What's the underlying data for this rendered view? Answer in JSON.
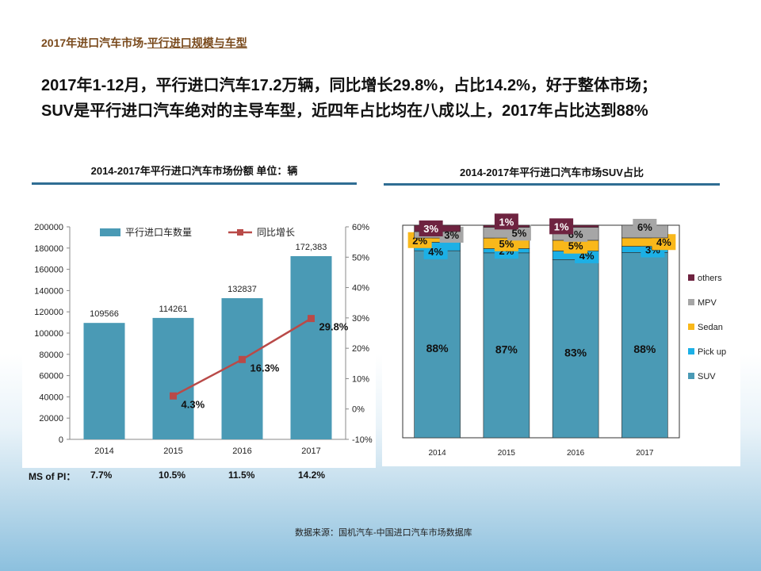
{
  "slide": {
    "title_prefix": "2017年进口汽车市场-",
    "title_main": "平行进口规模与车型",
    "headline_line1": "2017年1-12月，平行进口汽车17.2万辆，同比增长29.8%，占比14.2%，好于整体市场；",
    "headline_line2": "SUV是平行进口汽车绝对的主导车型，近四年占比均在八成以上，2017年占比达到88%",
    "source": "数据来源：国机汽车-中国进口汽车市场数据库"
  },
  "ms_row": {
    "label": "MS of PI：",
    "values": [
      "7.7%",
      "10.5%",
      "11.5%",
      "14.2%"
    ]
  },
  "colors": {
    "bar": "#4a9ab5",
    "line": "#b94a48",
    "rule": "#2f6d93",
    "suv": "#4a9ab5",
    "pickup": "#1cb0e6",
    "sedan": "#f9b81a",
    "mpv": "#a6a6a6",
    "others": "#6e2340"
  },
  "chart_data": [
    {
      "type": "bar",
      "title": "2014-2017年平行进口汽车市场份额 单位：辆",
      "categories": [
        "2014",
        "2015",
        "2016",
        "2017"
      ],
      "series": [
        {
          "name": "平行进口车数量",
          "axis": "left",
          "kind": "bar",
          "values": [
            109566,
            114261,
            132837,
            172383
          ],
          "labels": [
            "109566",
            "114261",
            "132837",
            "172,383"
          ]
        },
        {
          "name": "同比增长",
          "axis": "right",
          "kind": "line",
          "x": [
            "2015",
            "2016",
            "2017"
          ],
          "values": [
            4.3,
            16.3,
            29.8
          ],
          "labels": [
            "4.3%",
            "16.3%",
            "29.8%"
          ]
        }
      ],
      "ylim": [
        0,
        200000
      ],
      "yticks": [
        "0",
        "20000",
        "40000",
        "60000",
        "80000",
        "100000",
        "120000",
        "140000",
        "160000",
        "180000",
        "200000"
      ],
      "y2lim": [
        -10,
        60
      ],
      "y2ticks": [
        "-10%",
        "0%",
        "10%",
        "20%",
        "30%",
        "40%",
        "50%",
        "60%"
      ],
      "legend": "top"
    },
    {
      "type": "bar",
      "stacked": true,
      "title": "2014-2017年平行进口汽车市场SUV占比",
      "categories": [
        "2014",
        "2015",
        "2016",
        "2017"
      ],
      "series": [
        {
          "name": "SUV",
          "values": [
            88,
            87,
            83,
            88
          ],
          "labels": [
            "88%",
            "87%",
            "83%",
            "88%"
          ]
        },
        {
          "name": "Pick up",
          "values": [
            4,
            2,
            4,
            3
          ],
          "labels": [
            "4%",
            "2%",
            "4%",
            "3%"
          ]
        },
        {
          "name": "Sedan",
          "values": [
            2,
            5,
            5,
            4
          ],
          "labels": [
            "2%",
            "5%",
            "5%",
            "4%"
          ]
        },
        {
          "name": "MPV",
          "values": [
            3,
            5,
            6,
            6
          ],
          "labels": [
            "3%",
            "5%",
            "6%",
            "6%"
          ]
        },
        {
          "name": "others",
          "values": [
            3,
            1,
            1,
            0
          ],
          "labels": [
            "3%",
            "1%",
            "1%",
            ""
          ]
        }
      ],
      "ylim": [
        0,
        100
      ],
      "legend": "right"
    }
  ]
}
